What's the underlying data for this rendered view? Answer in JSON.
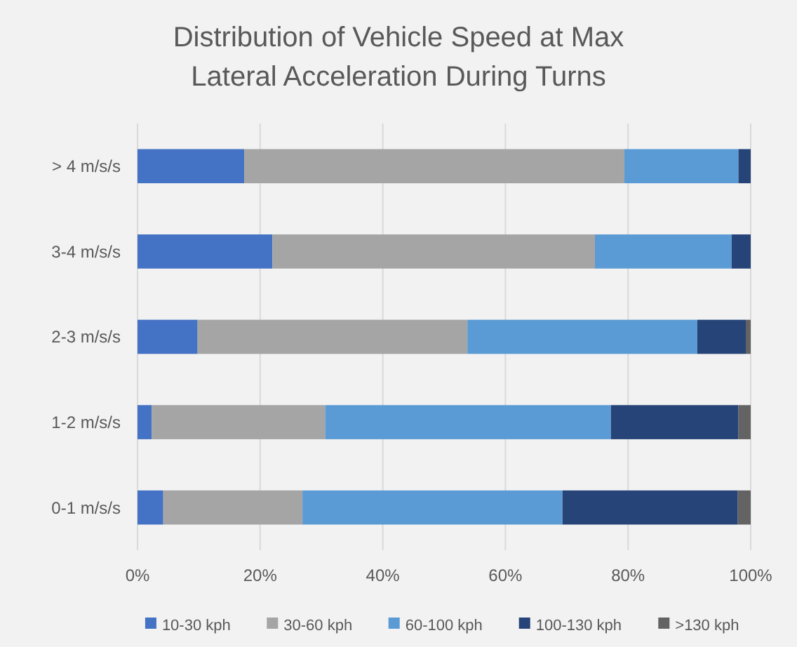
{
  "chart_data": {
    "type": "bar",
    "orientation": "horizontal",
    "stacked": true,
    "title": "Distribution of Vehicle Speed at Max Lateral Acceleration During Turns",
    "categories": [
      "> 4 m/s/s",
      "3-4 m/s/s",
      "2-3 m/s/s",
      "1-2 m/s/s",
      "0-1 m/s/s"
    ],
    "series": [
      {
        "name": "10-30 kph",
        "color": "#4472c4",
        "values": [
          17.4,
          22.0,
          9.8,
          2.3,
          4.2
        ]
      },
      {
        "name": "30-60 kph",
        "color": "#a5a5a5",
        "values": [
          62.0,
          52.6,
          44.0,
          28.3,
          22.7
        ]
      },
      {
        "name": "60-100 kph",
        "color": "#5b9bd5",
        "values": [
          18.6,
          22.3,
          37.5,
          46.6,
          42.4
        ]
      },
      {
        "name": "100-130 kph",
        "color": "#264478",
        "values": [
          2.0,
          3.1,
          7.9,
          20.8,
          28.6
        ]
      },
      {
        "name": ">130 kph",
        "color": "#636363",
        "values": [
          0,
          0,
          0.8,
          2.0,
          2.1
        ]
      }
    ],
    "xlim": [
      0,
      100
    ],
    "xticks": [
      {
        "value": 0,
        "label": "0%"
      },
      {
        "value": 20,
        "label": "20%"
      },
      {
        "value": 40,
        "label": "40%"
      },
      {
        "value": 60,
        "label": "60%"
      },
      {
        "value": 80,
        "label": "80%"
      },
      {
        "value": 100,
        "label": "100%"
      }
    ],
    "grid": "x",
    "legend": "bottom"
  }
}
